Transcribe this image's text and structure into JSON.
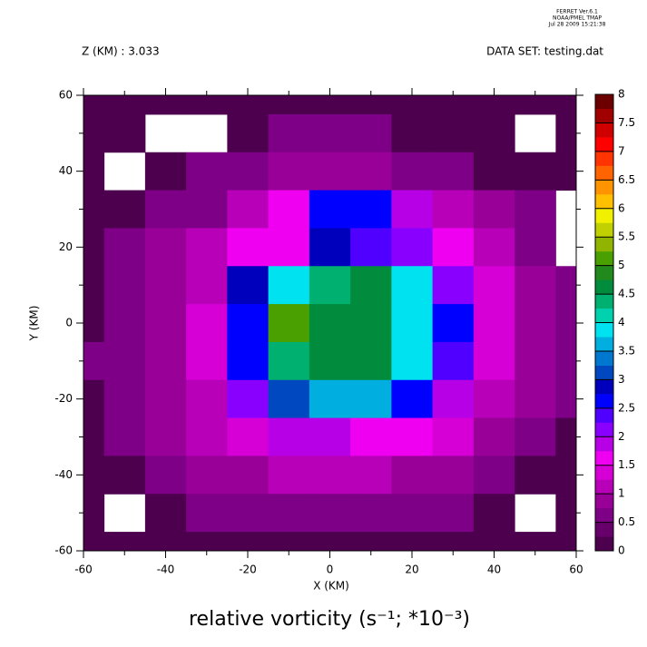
{
  "chart_data": {
    "type": "contour",
    "stamp": [
      "FERRET  Ver.6.1",
      "NOAA/PMEL TMAP",
      "Jul 28 2009 15:21:38"
    ],
    "subtitle_left": "Z (KM) : 3.033",
    "subtitle_right": "DATA SET: testing.dat",
    "title": "relative vorticity (s⁻¹; *10⁻³)",
    "x_label": "X (KM)",
    "y_label": "Y (KM)",
    "x": [
      -60,
      -50,
      -40,
      -30,
      -20,
      -10,
      0,
      10,
      20,
      30,
      40,
      50,
      60
    ],
    "y": [
      60,
      50,
      40,
      30,
      20,
      10,
      0,
      -10,
      -20,
      -30,
      -40,
      -50,
      -60
    ],
    "z": [
      [
        0.2,
        0.2,
        0.2,
        0.2,
        0.2,
        0.2,
        0.2,
        0.2,
        0.2,
        0.2,
        0.2,
        0.2,
        0.2
      ],
      [
        0.2,
        0.2,
        null,
        null,
        0.2,
        0.5,
        0.5,
        0.5,
        0.2,
        0.2,
        0.2,
        null,
        0.2
      ],
      [
        0.2,
        null,
        0.2,
        0.5,
        0.5,
        0.8,
        0.8,
        0.8,
        0.5,
        0.5,
        0.2,
        0.2,
        0.2
      ],
      [
        0.2,
        0.2,
        0.5,
        0.5,
        1.1,
        1.6,
        2.5,
        2.6,
        1.8,
        1.1,
        0.8,
        0.5,
        null
      ],
      [
        0.2,
        0.5,
        0.8,
        1.1,
        1.5,
        1.7,
        2.8,
        2.3,
        2.0,
        1.5,
        1.1,
        0.5,
        null
      ],
      [
        0.2,
        0.5,
        0.8,
        1.2,
        2.8,
        3.8,
        4.3,
        4.5,
        3.8,
        2.2,
        1.3,
        0.8,
        0.5
      ],
      [
        0.2,
        0.5,
        0.8,
        1.3,
        2.7,
        5.2,
        4.6,
        4.6,
        3.9,
        2.6,
        1.3,
        0.8,
        0.5
      ],
      [
        0.5,
        0.5,
        0.8,
        1.4,
        2.6,
        4.3,
        4.6,
        4.5,
        3.8,
        2.4,
        1.3,
        0.8,
        0.5
      ],
      [
        0.2,
        0.5,
        0.8,
        1.2,
        2.0,
        3.0,
        3.6,
        3.5,
        2.7,
        1.8,
        1.1,
        0.8,
        0.5
      ],
      [
        0.2,
        0.5,
        0.8,
        1.1,
        1.4,
        1.9,
        1.8,
        1.7,
        1.5,
        1.3,
        0.8,
        0.5,
        0.2
      ],
      [
        0.2,
        0.2,
        0.5,
        0.8,
        0.8,
        1.0,
        1.1,
        1.1,
        0.8,
        0.8,
        0.5,
        0.2,
        0.2
      ],
      [
        0.2,
        null,
        0.2,
        0.5,
        0.5,
        0.5,
        0.5,
        0.5,
        0.5,
        0.5,
        0.2,
        null,
        0.2
      ],
      [
        0.2,
        0.2,
        0.2,
        0.2,
        0.2,
        0.2,
        0.2,
        0.2,
        0.2,
        0.2,
        0.2,
        0.2,
        0.2
      ]
    ],
    "xlim": [
      -60,
      60
    ],
    "ylim": [
      -60,
      60
    ],
    "xticks": [
      -60,
      -40,
      -20,
      0,
      20,
      40,
      60
    ],
    "yticks": [
      -60,
      -40,
      -20,
      0,
      20,
      40,
      60
    ],
    "xminorticks": [
      -50,
      -30,
      -10,
      10,
      30,
      50
    ],
    "yminorticks": [
      -50,
      -30,
      -10,
      10,
      30,
      50
    ],
    "zlim": [
      0,
      8
    ],
    "colorbar_ticks": [
      0,
      0.5,
      1,
      1.5,
      2,
      2.5,
      3,
      3.5,
      4,
      4.5,
      5,
      5.5,
      6,
      6.5,
      7,
      7.5,
      8
    ],
    "colors": [
      "#4c004e",
      "#68006c",
      "#7e0086",
      "#980098",
      "#b800b8",
      "#d600d6",
      "#f000f0",
      "#b800e6",
      "#8a00ff",
      "#5000ff",
      "#0000ff",
      "#0000bc",
      "#0048c0",
      "#0078d0",
      "#00aee0",
      "#00e2f0",
      "#00d2b0",
      "#00b070",
      "#008c3c",
      "#228a1c",
      "#4aa000",
      "#90b400",
      "#c0d000",
      "#f0f000",
      "#ffc000",
      "#ff9400",
      "#ff6400",
      "#ff3400",
      "#ff0000",
      "#d00000",
      "#a00000",
      "#6c0000"
    ]
  }
}
